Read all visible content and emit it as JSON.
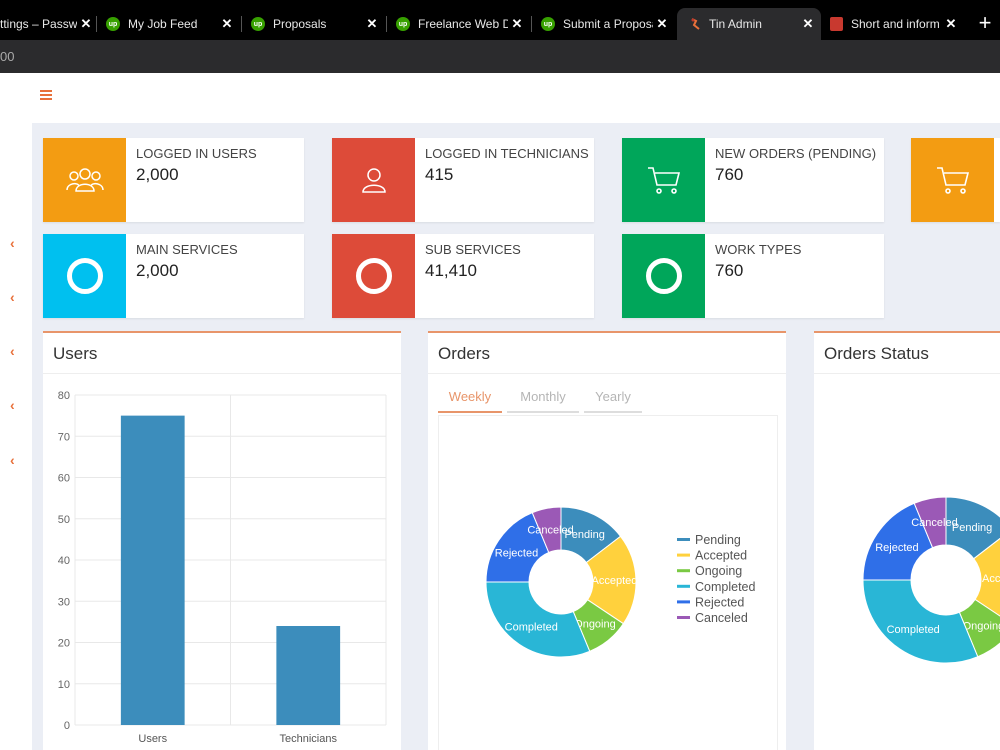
{
  "browser": {
    "tabs": [
      {
        "title": "ttings – Passwo",
        "icon": "lastpass-icon"
      },
      {
        "title": "My Job Feed",
        "icon": "upwork-icon"
      },
      {
        "title": "Proposals",
        "icon": "upwork-icon"
      },
      {
        "title": "Freelance Web De",
        "icon": "upwork-icon"
      },
      {
        "title": "Submit a Proposa",
        "icon": "upwork-icon"
      },
      {
        "title": "Tin Admin",
        "icon": "tin-icon"
      },
      {
        "title": "Short and inform",
        "icon": "doc-icon"
      }
    ],
    "upwork_badge": "up",
    "new_tab_symbol": "+",
    "close_symbol": "✕",
    "address": "00"
  },
  "stats": [
    {
      "label": "LOGGED IN USERS",
      "value": "2,000",
      "color": "#f39c12",
      "icon": "users-icon"
    },
    {
      "label": "LOGGED IN TECHNICIANS",
      "value": "415",
      "color": "#dd4b39",
      "icon": "user-icon"
    },
    {
      "label": "NEW ORDERS (PENDING)",
      "value": "760",
      "color": "#00a65a",
      "icon": "cart-icon"
    },
    {
      "label": "",
      "value": "",
      "color": "#f39c12",
      "icon": "cart-icon"
    },
    {
      "label": "MAIN SERVICES",
      "value": "2,000",
      "color": "#00c0ef",
      "icon": "ring-icon"
    },
    {
      "label": "SUB SERVICES",
      "value": "41,410",
      "color": "#dd4b39",
      "icon": "ring-icon"
    },
    {
      "label": "WORK TYPES",
      "value": "760",
      "color": "#00a65a",
      "icon": "ring-icon"
    }
  ],
  "panels": {
    "users_title": "Users",
    "orders_title": "Orders",
    "status_title": "Orders Status",
    "order_tabs": [
      "Weekly",
      "Monthly",
      "Yearly"
    ]
  },
  "chart_data": [
    {
      "type": "bar",
      "title": "Users",
      "categories": [
        "Users",
        "Technicians"
      ],
      "values": [
        75,
        24
      ],
      "ylim": [
        0,
        80
      ],
      "yticks": [
        0,
        10,
        20,
        30,
        40,
        50,
        60,
        70,
        80
      ],
      "color": "#3c8dbc",
      "grid": true
    },
    {
      "type": "pie",
      "title": "Orders",
      "categories": [
        "Pending",
        "Accepted",
        "Ongoing",
        "Completed",
        "Rejected",
        "Canceled"
      ],
      "values": [
        14,
        19,
        9,
        30,
        18,
        6
      ],
      "colors": [
        "#3c8dbc",
        "#ffd13d",
        "#7ac943",
        "#29b6d6",
        "#2f6fe8",
        "#9b59b6"
      ],
      "legend": "right",
      "donut": true
    },
    {
      "type": "pie",
      "title": "Orders Status",
      "categories": [
        "Pending",
        "Accepted",
        "Ongoing",
        "Completed",
        "Rejected",
        "Canceled"
      ],
      "values": [
        14,
        19,
        9,
        30,
        18,
        6
      ],
      "colors": [
        "#3c8dbc",
        "#ffd13d",
        "#7ac943",
        "#29b6d6",
        "#2f6fe8",
        "#9b59b6"
      ],
      "donut": true
    }
  ]
}
